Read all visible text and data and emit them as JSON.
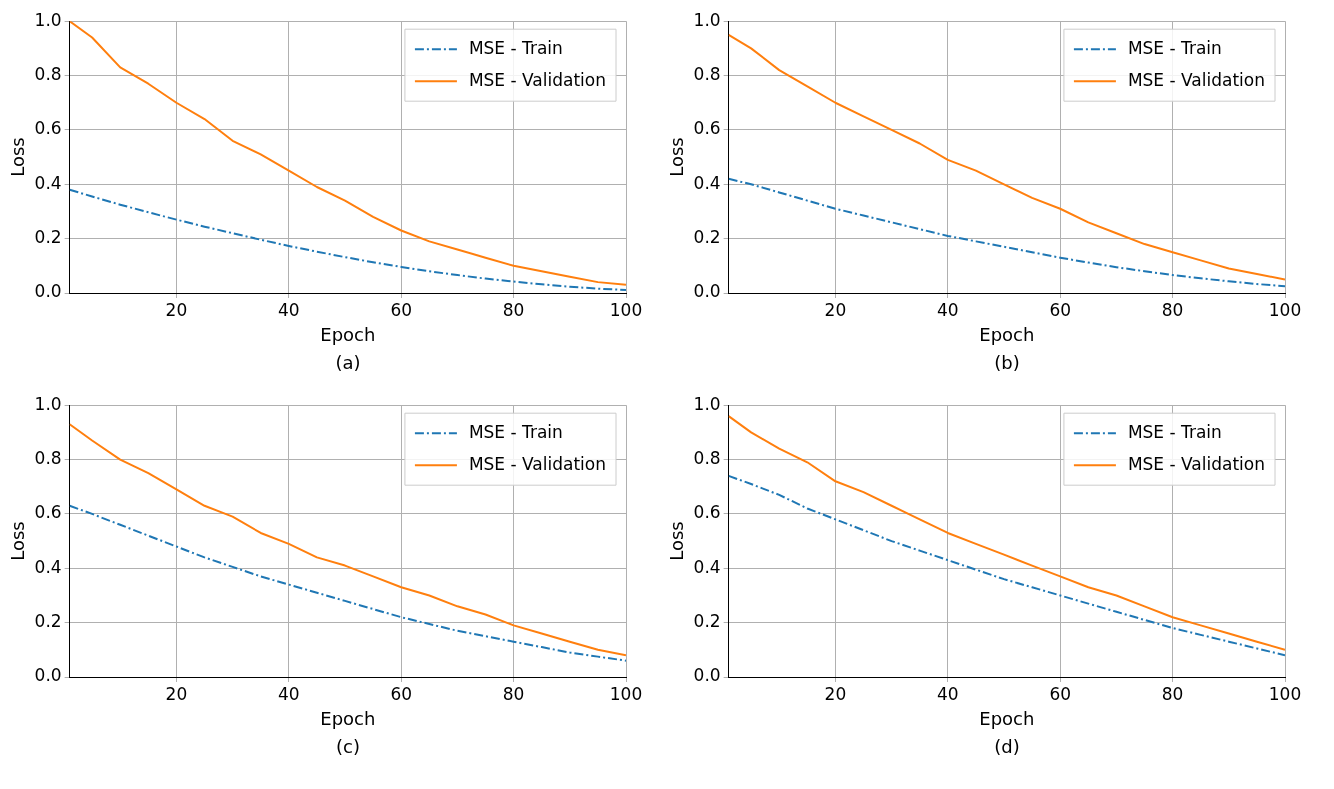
{
  "chart_data": [
    {
      "type": "line",
      "xlabel": "Epoch",
      "ylabel": "Loss",
      "annotations": [
        "(a)"
      ],
      "xlim": [
        1,
        100
      ],
      "xticks": [
        20,
        40,
        60,
        80,
        100
      ],
      "ylim": [
        0,
        1
      ],
      "yticks": [
        {
          "value": 0,
          "label": "0.0"
        },
        {
          "value": 0.2,
          "label": "0.2"
        },
        {
          "value": 0.4,
          "label": "0.4"
        },
        {
          "value": 0.6,
          "label": "0.6"
        },
        {
          "value": 0.8,
          "label": "0.8"
        },
        {
          "value": 1,
          "label": "1.0"
        }
      ],
      "grid": true,
      "legend": "top right",
      "marker": "none",
      "x": [
        1,
        5,
        10,
        15,
        20,
        25,
        30,
        35,
        40,
        45,
        50,
        55,
        60,
        65,
        70,
        75,
        80,
        85,
        90,
        95,
        100
      ],
      "series": [
        {
          "name": "MSE - Train",
          "color": "#1f77b4",
          "line_style": "dashed",
          "values": [
            0.38,
            0.355,
            0.325,
            0.297,
            0.27,
            0.244,
            0.22,
            0.196,
            0.173,
            0.152,
            0.132,
            0.113,
            0.096,
            0.08,
            0.066,
            0.053,
            0.042,
            0.032,
            0.023,
            0.016,
            0.011
          ]
        },
        {
          "name": "MSE - Validation",
          "color": "#ff7f0e",
          "line_style": "solid",
          "values": [
            1.0,
            0.94,
            0.83,
            0.77,
            0.7,
            0.64,
            0.56,
            0.51,
            0.45,
            0.39,
            0.34,
            0.28,
            0.23,
            0.19,
            0.16,
            0.13,
            0.1,
            0.08,
            0.06,
            0.04,
            0.03
          ]
        }
      ]
    },
    {
      "type": "line",
      "xlabel": "Epoch",
      "ylabel": "Loss",
      "annotations": [
        "(b)"
      ],
      "xlim": [
        1,
        100
      ],
      "xticks": [
        20,
        40,
        60,
        80,
        100
      ],
      "ylim": [
        0,
        1
      ],
      "yticks": [
        {
          "value": 0,
          "label": "0.0"
        },
        {
          "value": 0.2,
          "label": "0.2"
        },
        {
          "value": 0.4,
          "label": "0.4"
        },
        {
          "value": 0.6,
          "label": "0.6"
        },
        {
          "value": 0.8,
          "label": "0.8"
        },
        {
          "value": 1,
          "label": "1.0"
        }
      ],
      "grid": true,
      "legend": "top right",
      "marker": "none",
      "x": [
        1,
        5,
        10,
        15,
        20,
        25,
        30,
        35,
        40,
        45,
        50,
        55,
        60,
        65,
        70,
        75,
        80,
        85,
        90,
        95,
        100
      ],
      "series": [
        {
          "name": "MSE - Train",
          "color": "#1f77b4",
          "line_style": "dashed",
          "values": [
            0.42,
            0.4,
            0.37,
            0.34,
            0.31,
            0.285,
            0.26,
            0.235,
            0.21,
            0.19,
            0.17,
            0.15,
            0.13,
            0.112,
            0.095,
            0.08,
            0.066,
            0.054,
            0.043,
            0.033,
            0.025
          ]
        },
        {
          "name": "MSE - Validation",
          "color": "#ff7f0e",
          "line_style": "solid",
          "values": [
            0.95,
            0.9,
            0.82,
            0.76,
            0.7,
            0.65,
            0.6,
            0.55,
            0.49,
            0.45,
            0.4,
            0.35,
            0.31,
            0.26,
            0.22,
            0.18,
            0.15,
            0.12,
            0.09,
            0.07,
            0.05
          ]
        }
      ]
    },
    {
      "type": "line",
      "xlabel": "Epoch",
      "ylabel": "Loss",
      "annotations": [
        "(c)"
      ],
      "xlim": [
        1,
        100
      ],
      "xticks": [
        20,
        40,
        60,
        80,
        100
      ],
      "ylim": [
        0,
        1
      ],
      "yticks": [
        {
          "value": 0,
          "label": "0.0"
        },
        {
          "value": 0.2,
          "label": "0.2"
        },
        {
          "value": 0.4,
          "label": "0.4"
        },
        {
          "value": 0.6,
          "label": "0.6"
        },
        {
          "value": 0.8,
          "label": "0.8"
        },
        {
          "value": 1,
          "label": "1.0"
        }
      ],
      "grid": true,
      "legend": "top right",
      "marker": "none",
      "x": [
        1,
        5,
        10,
        15,
        20,
        25,
        30,
        35,
        40,
        45,
        50,
        55,
        60,
        65,
        70,
        75,
        80,
        85,
        90,
        95,
        100
      ],
      "series": [
        {
          "name": "MSE - Train",
          "color": "#1f77b4",
          "line_style": "dashed",
          "values": [
            0.63,
            0.6,
            0.56,
            0.52,
            0.48,
            0.44,
            0.405,
            0.37,
            0.34,
            0.31,
            0.28,
            0.25,
            0.22,
            0.195,
            0.17,
            0.15,
            0.13,
            0.11,
            0.09,
            0.075,
            0.06
          ]
        },
        {
          "name": "MSE - Validation",
          "color": "#ff7f0e",
          "line_style": "solid",
          "values": [
            0.93,
            0.87,
            0.8,
            0.75,
            0.69,
            0.63,
            0.59,
            0.53,
            0.49,
            0.44,
            0.41,
            0.37,
            0.33,
            0.3,
            0.26,
            0.23,
            0.19,
            0.16,
            0.13,
            0.1,
            0.08
          ]
        }
      ]
    },
    {
      "type": "line",
      "xlabel": "Epoch",
      "ylabel": "Loss",
      "annotations": [
        "(d)"
      ],
      "xlim": [
        1,
        100
      ],
      "xticks": [
        20,
        40,
        60,
        80,
        100
      ],
      "ylim": [
        0,
        1
      ],
      "yticks": [
        {
          "value": 0,
          "label": "0.0"
        },
        {
          "value": 0.2,
          "label": "0.2"
        },
        {
          "value": 0.4,
          "label": "0.4"
        },
        {
          "value": 0.6,
          "label": "0.6"
        },
        {
          "value": 0.8,
          "label": "0.8"
        },
        {
          "value": 1,
          "label": "1.0"
        }
      ],
      "grid": true,
      "legend": "top right",
      "marker": "none",
      "x": [
        1,
        5,
        10,
        15,
        20,
        25,
        30,
        35,
        40,
        45,
        50,
        55,
        60,
        65,
        70,
        75,
        80,
        85,
        90,
        95,
        100
      ],
      "series": [
        {
          "name": "MSE - Train",
          "color": "#1f77b4",
          "line_style": "dashed",
          "values": [
            0.74,
            0.71,
            0.67,
            0.62,
            0.58,
            0.54,
            0.5,
            0.465,
            0.43,
            0.395,
            0.36,
            0.33,
            0.3,
            0.27,
            0.24,
            0.21,
            0.18,
            0.155,
            0.13,
            0.105,
            0.08
          ]
        },
        {
          "name": "MSE - Validation",
          "color": "#ff7f0e",
          "line_style": "solid",
          "values": [
            0.96,
            0.9,
            0.84,
            0.79,
            0.72,
            0.68,
            0.63,
            0.58,
            0.53,
            0.49,
            0.45,
            0.41,
            0.37,
            0.33,
            0.3,
            0.26,
            0.22,
            0.19,
            0.16,
            0.13,
            0.1
          ]
        }
      ]
    }
  ]
}
